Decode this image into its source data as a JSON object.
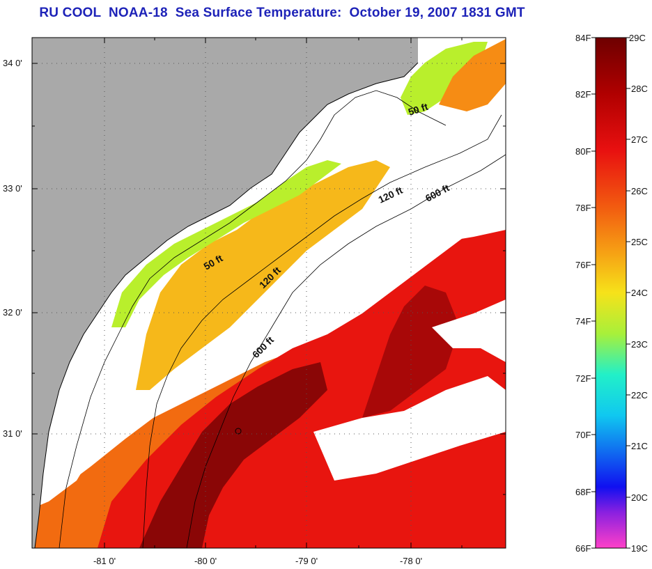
{
  "title": "RU COOL  NOAA-18  Sea Surface Temperature:  October 19, 2007 1831 GMT",
  "map": {
    "lat_labels": [
      "34 0'",
      "33 0'",
      "32 0'",
      "31 0'"
    ],
    "lon_labels": [
      "-81 0'",
      "-80 0'",
      "-79 0'",
      "-78 0'"
    ],
    "contour_labels": [
      "50 ft",
      "50 ft",
      "120 ft",
      "120 ft",
      "600 ft",
      "600 ft"
    ],
    "colors": {
      "land": "#a9a9a9",
      "cloud": "#ffffff",
      "sst_dark": "#8a0606",
      "sst_red": "#e8150f",
      "sst_orange": "#f26b10",
      "sst_yellow": "#f6d91a",
      "sst_green": "#b9ef2c"
    }
  },
  "colorbar": {
    "fahrenheit_labels": [
      "84F",
      "82F",
      "80F",
      "78F",
      "76F",
      "74F",
      "72F",
      "70F",
      "68F",
      "66F"
    ],
    "celsius_labels": [
      "29C",
      "28C",
      "27C",
      "26C",
      "25C",
      "24C",
      "23C",
      "22C",
      "21C",
      "20C",
      "19C"
    ],
    "range_f": [
      66,
      84
    ],
    "range_c": [
      19,
      29
    ],
    "colors_top_to_bottom": [
      "#6e0000",
      "#b00000",
      "#e81010",
      "#f25a10",
      "#f6a014",
      "#f6e21a",
      "#a8f03a",
      "#22f0c8",
      "#10c8f0",
      "#1060f0",
      "#1010f0",
      "#8a20e0",
      "#ff40c8"
    ]
  }
}
